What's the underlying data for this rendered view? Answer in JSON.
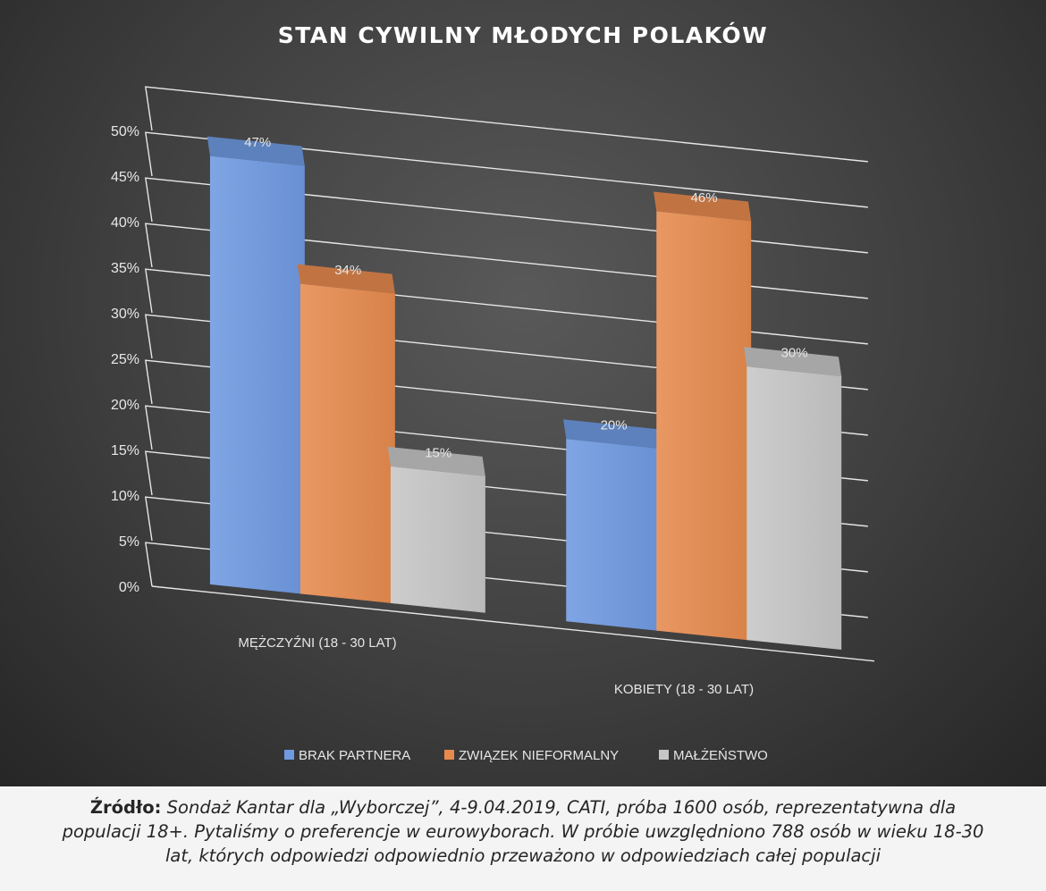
{
  "chart_data": {
    "type": "bar",
    "title": "STAN CYWILNY MŁODYCH POLAKÓW",
    "categories": [
      "MĘŻCZYŹNI (18 - 30 LAT)",
      "KOBIETY (18 - 30 LAT)"
    ],
    "series": [
      {
        "name": "BRAK PARTNERA",
        "values": [
          47,
          20
        ],
        "labels": [
          "47%",
          "20%"
        ],
        "color": "#6f99e0"
      },
      {
        "name": "ZWIĄZEK NIEFORMALNY",
        "values": [
          34,
          46
        ],
        "labels": [
          "34%",
          "46%"
        ],
        "color": "#e68a4e"
      },
      {
        "name": "MAŁŻEŃSTWO",
        "values": [
          15,
          30
        ],
        "labels": [
          "15%",
          "30%"
        ],
        "color": "#c6c6c6"
      }
    ],
    "yticks": [
      "0%",
      "5%",
      "10%",
      "15%",
      "20%",
      "25%",
      "30%",
      "35%",
      "40%",
      "45%",
      "50%"
    ],
    "ylim": [
      0,
      50
    ],
    "grid": true,
    "legend_position": "bottom"
  },
  "source": {
    "label": "Źródło:",
    "text": "Sondaż Kantar dla „Wyborczej”, 4-9.04.2019, CATI, próba 1600 osób, reprezentatywna dla populacji 18+. Pytaliśmy o preferencje w eurowyborach. W próbie uwzględniono 788 osób w wieku 18-30 lat, których odpowiedzi odpowiednio przeważono w odpowiedziach całej populacji"
  }
}
